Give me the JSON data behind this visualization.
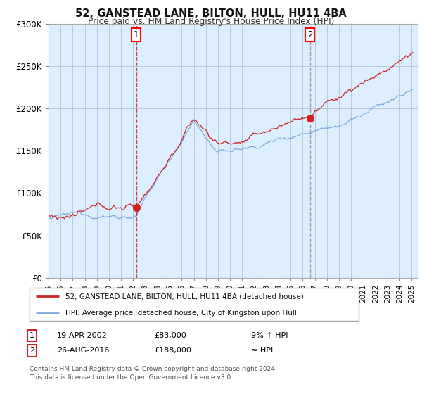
{
  "title": "52, GANSTEAD LANE, BILTON, HULL, HU11 4BA",
  "subtitle": "Price paid vs. HM Land Registry's House Price Index (HPI)",
  "fig_bg_color": "#ffffff",
  "plot_bg_color": "#ddeeff",
  "marker1_date_idx": 87,
  "marker1_value": 83000,
  "marker1_date_str": "19-APR-2002",
  "marker1_price_str": "£83,000",
  "marker1_hpi_str": "9% ↑ HPI",
  "marker2_date_idx": 259,
  "marker2_value": 188000,
  "marker2_date_str": "26-AUG-2016",
  "marker2_price_str": "£188,000",
  "marker2_hpi_str": "≈ HPI",
  "legend_line1": "52, GANSTEAD LANE, BILTON, HULL, HU11 4BA (detached house)",
  "legend_line2": "HPI: Average price, detached house, City of Kingston upon Hull",
  "footnote1": "Contains HM Land Registry data © Crown copyright and database right 2024.",
  "footnote2": "This data is licensed under the Open Government Licence v3.0.",
  "hpi_color": "#7aaadd",
  "price_color": "#cc2222",
  "ylim": [
    0,
    300000
  ],
  "yticks": [
    0,
    50000,
    100000,
    150000,
    200000,
    250000,
    300000
  ]
}
